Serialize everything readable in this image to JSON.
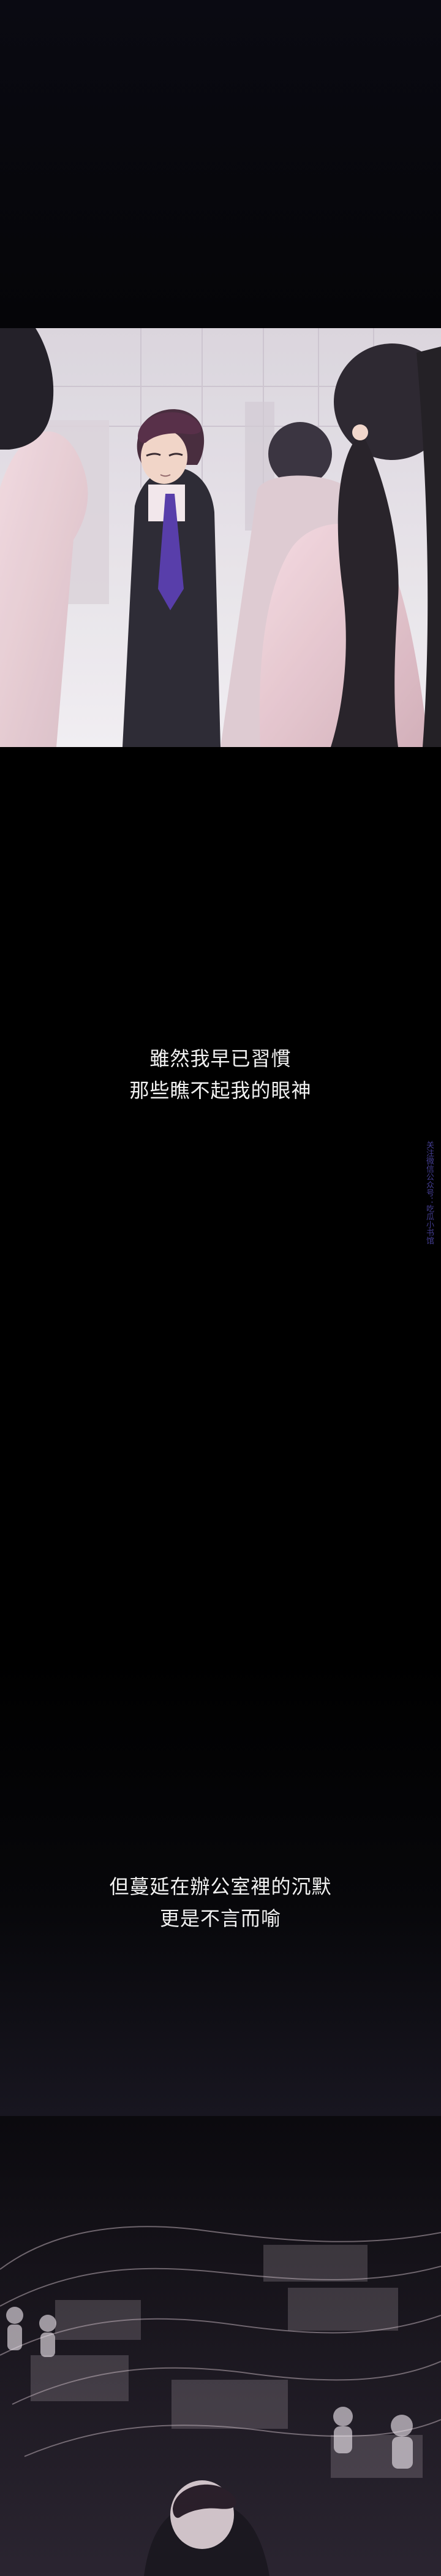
{
  "captions": {
    "first": {
      "line1": "雖然我早已習慣",
      "line2": "那些瞧不起我的眼神"
    },
    "second": {
      "line1": "但蔓延在辦公室裡的沉默",
      "line2": "更是不言而喻"
    }
  },
  "side_note": "关注微信公众号：吃瓜小书馆",
  "colors": {
    "background": "#000000",
    "panel_light": "#e7e2ea",
    "suit": "#1d1b25",
    "tie": "#4a2ea3",
    "caption_text": "#f2f2f2",
    "side_note": "#4b44a0"
  }
}
